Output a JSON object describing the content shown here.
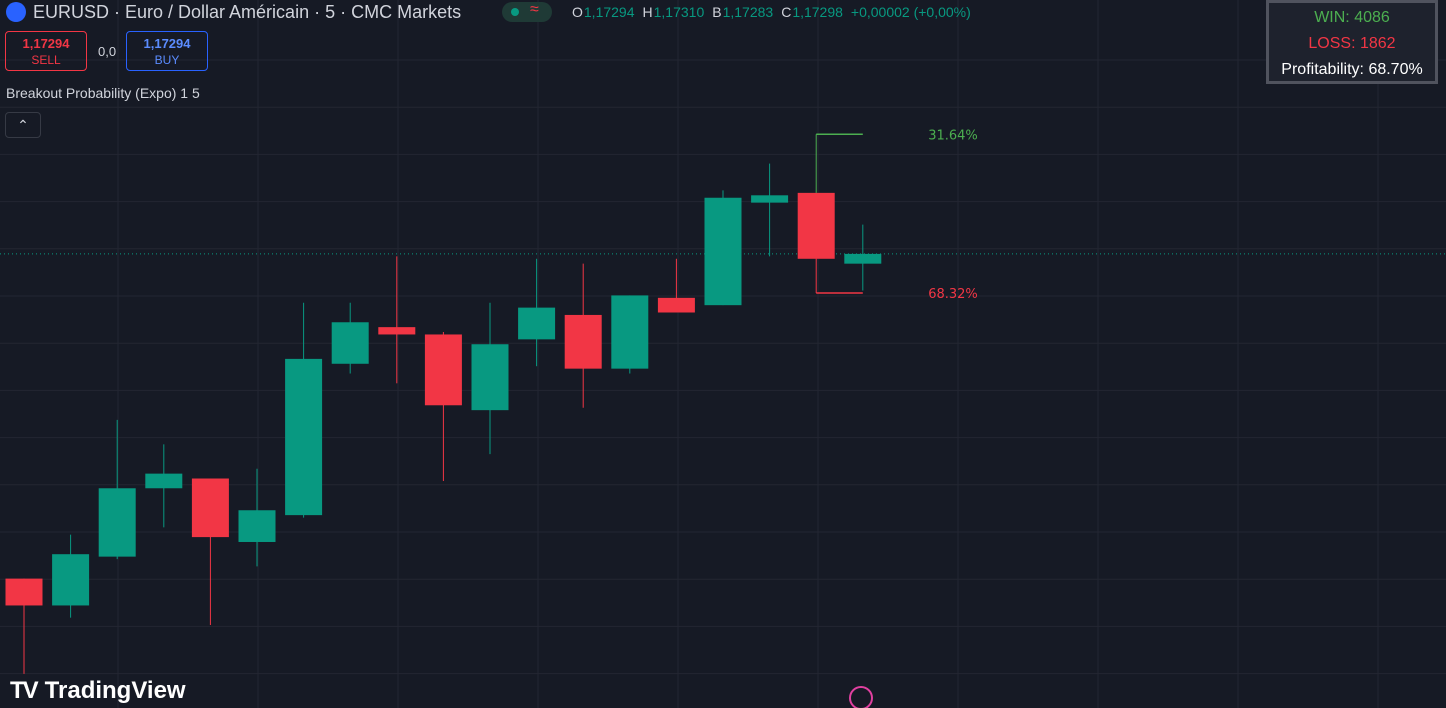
{
  "header": {
    "symbol": "EURUSD · Euro / Dollar Américain · 5 · CMC Markets",
    "ohlc": [
      {
        "key": "O",
        "value": "1,17294"
      },
      {
        "key": "H",
        "value": "1,17310"
      },
      {
        "key": "B",
        "value": "1,17283"
      },
      {
        "key": "C",
        "value": "1,17298"
      }
    ],
    "change": "+0,00002 (+0,00%)"
  },
  "trade": {
    "sell_price": "1,17294",
    "sell_label": "SELL",
    "spread": "0,0",
    "buy_price": "1,17294",
    "buy_label": "BUY"
  },
  "indicator": "Breakout Probability (Expo) 1 5",
  "stats": {
    "win": "WIN: 4086",
    "loss": "LOSS: 1862",
    "profitability": "Profitability: 68.70%"
  },
  "logo": "TradingView",
  "chart_data": {
    "type": "candlestick",
    "ylim": [
      1.17112,
      1.17402
    ],
    "grid": true,
    "up_color": "#089981",
    "down_color": "#f23645",
    "candles": [
      {
        "open": 1.17165,
        "high": 1.17165,
        "low": 1.17126,
        "close": 1.17154
      },
      {
        "open": 1.17154,
        "high": 1.17183,
        "low": 1.17149,
        "close": 1.17175
      },
      {
        "open": 1.17174,
        "high": 1.1723,
        "low": 1.17173,
        "close": 1.17202
      },
      {
        "open": 1.17202,
        "high": 1.1722,
        "low": 1.17186,
        "close": 1.17208
      },
      {
        "open": 1.17206,
        "high": 1.17206,
        "low": 1.17146,
        "close": 1.17182
      },
      {
        "open": 1.1718,
        "high": 1.1721,
        "low": 1.1717,
        "close": 1.17193
      },
      {
        "open": 1.17191,
        "high": 1.17278,
        "low": 1.1719,
        "close": 1.17255
      },
      {
        "open": 1.17253,
        "high": 1.17278,
        "low": 1.17249,
        "close": 1.1727
      },
      {
        "open": 1.17268,
        "high": 1.17297,
        "low": 1.17245,
        "close": 1.17265
      },
      {
        "open": 1.17265,
        "high": 1.17266,
        "low": 1.17205,
        "close": 1.17236
      },
      {
        "open": 1.17234,
        "high": 1.17278,
        "low": 1.17216,
        "close": 1.17261
      },
      {
        "open": 1.17263,
        "high": 1.17296,
        "low": 1.17252,
        "close": 1.17276
      },
      {
        "open": 1.17273,
        "high": 1.17294,
        "low": 1.17235,
        "close": 1.17251
      },
      {
        "open": 1.17251,
        "high": 1.17281,
        "low": 1.17249,
        "close": 1.17281
      },
      {
        "open": 1.1728,
        "high": 1.17296,
        "low": 1.17274,
        "close": 1.17274
      },
      {
        "open": 1.17277,
        "high": 1.17324,
        "low": 1.17277,
        "close": 1.17321
      },
      {
        "open": 1.17319,
        "high": 1.17335,
        "low": 1.17297,
        "close": 1.17322
      },
      {
        "open": 1.17323,
        "high": 1.17323,
        "low": 1.17296,
        "close": 1.17296
      },
      {
        "open": 1.17294,
        "high": 1.1731,
        "low": 1.17283,
        "close": 1.17298
      }
    ],
    "levels": [
      {
        "value": 1.17347,
        "label": "31.64%",
        "color": "#4caf50"
      },
      {
        "value": 1.17282,
        "label": "68.32%",
        "color": "#f23645"
      }
    ]
  }
}
